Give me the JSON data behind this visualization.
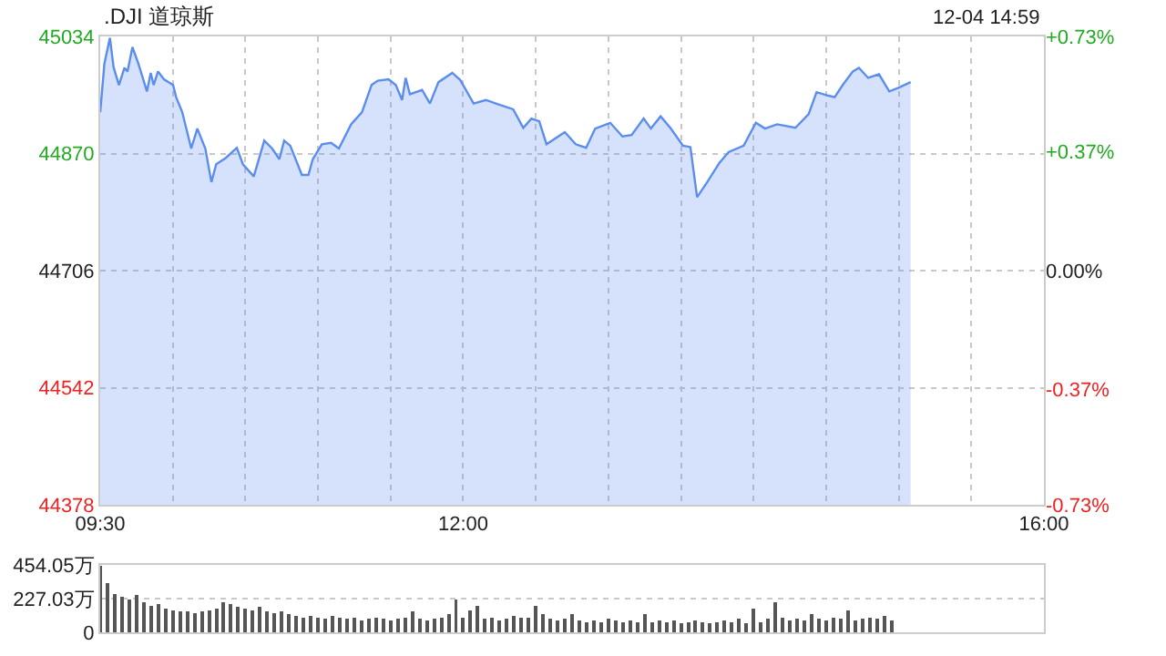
{
  "chart_data": [
    {
      "type": "area",
      "title": ".DJI 道琼斯",
      "annotations": [
        "12-04 14:59"
      ],
      "x": [
        9.5,
        9.529,
        9.567,
        9.592,
        9.629,
        9.667,
        9.688,
        9.722,
        9.763,
        9.822,
        9.848,
        9.868,
        9.898,
        9.939,
        10.002,
        10.023,
        10.065,
        10.127,
        10.169,
        10.224,
        10.266,
        10.299,
        10.366,
        10.441,
        10.483,
        10.558,
        10.63,
        10.684,
        10.734,
        10.767,
        10.809,
        10.889,
        10.934,
        10.964,
        11.027,
        11.09,
        11.144,
        11.228,
        11.303,
        11.369,
        11.411,
        11.486,
        11.536,
        11.579,
        11.604,
        11.633,
        11.717,
        11.771,
        11.83,
        11.925,
        11.98,
        12.072,
        12.156,
        12.239,
        12.344,
        12.414,
        12.47,
        12.524,
        12.574,
        12.7,
        12.775,
        12.847,
        12.909,
        13.013,
        13.097,
        13.16,
        13.243,
        13.293,
        13.36,
        13.43,
        13.514,
        13.565,
        13.611,
        13.681,
        13.765,
        13.828,
        13.932,
        14.016,
        14.079,
        14.162,
        14.288,
        14.379,
        14.434,
        14.517,
        14.559,
        14.614,
        14.684,
        14.726,
        14.789,
        14.864,
        14.935,
        14.998,
        15.082
      ],
      "series": [
        {
          "color": "#5b8def",
          "values": [
            44928,
            44996,
            45032,
            44991,
            44966,
            44990,
            44985,
            45019,
            44996,
            44957,
            44983,
            44966,
            44985,
            44974,
            44966,
            44949,
            44928,
            44877,
            44905,
            44877,
            44830,
            44855,
            44864,
            44878,
            44855,
            44838,
            44888,
            44877,
            44862,
            44888,
            44881,
            44840,
            44840,
            44862,
            44883,
            44885,
            44877,
            44911,
            44928,
            44966,
            44972,
            44974,
            44966,
            44945,
            44976,
            44953,
            44959,
            44940,
            44970,
            44983,
            44973,
            44940,
            44945,
            44939,
            44932,
            44906,
            44919,
            44915,
            44883,
            44900,
            44883,
            44878,
            44905,
            44913,
            44894,
            44896,
            44919,
            44905,
            44922,
            44905,
            44881,
            44879,
            44809,
            44830,
            44857,
            44872,
            44881,
            44913,
            44905,
            44911,
            44906,
            44925,
            44956,
            44951,
            44949,
            44966,
            44985,
            44990,
            44976,
            44981,
            44957,
            44962,
            44970
          ]
        }
      ],
      "xlim": [
        9.5,
        16
      ],
      "xticks": [
        {
          "value": 9.5,
          "label": "09:30"
        },
        {
          "value": 10,
          "label": null
        },
        {
          "value": 10.5,
          "label": null
        },
        {
          "value": 11,
          "label": null
        },
        {
          "value": 11.5,
          "label": null
        },
        {
          "value": 12,
          "label": "12:00"
        },
        {
          "value": 12.5,
          "label": null
        },
        {
          "value": 13,
          "label": null
        },
        {
          "value": 13.5,
          "label": null
        },
        {
          "value": 14,
          "label": null
        },
        {
          "value": 14.5,
          "label": null
        },
        {
          "value": 15,
          "label": null
        },
        {
          "value": 15.5,
          "label": null
        },
        {
          "value": 16,
          "label": "16:00"
        }
      ],
      "ylim": [
        44378,
        45034
      ],
      "yticks": [
        44378,
        44542,
        44706,
        44870,
        45034
      ],
      "y2lim": [
        -0.73,
        0.73
      ],
      "y2ticks": [
        {
          "value": -0.73,
          "label": "-0.73%"
        },
        {
          "value": -0.37,
          "label": "-0.37%"
        },
        {
          "value": 0,
          "label": "0.00%"
        },
        {
          "value": 0.37,
          "label": "+0.37%"
        },
        {
          "value": 0.73,
          "label": "+0.73%"
        }
      ],
      "grid": true,
      "legend": false
    },
    {
      "type": "bar",
      "x": [
        9.5,
        9.55,
        9.6,
        9.65,
        9.7,
        9.75,
        9.8,
        9.85,
        9.9,
        9.95,
        10,
        10.05,
        10.1,
        10.15,
        10.2,
        10.25,
        10.3,
        10.35,
        10.4,
        10.45,
        10.5,
        10.55,
        10.6,
        10.65,
        10.7,
        10.75,
        10.8,
        10.85,
        10.9,
        10.95,
        11,
        11.05,
        11.1,
        11.15,
        11.2,
        11.25,
        11.3,
        11.35,
        11.4,
        11.45,
        11.5,
        11.55,
        11.6,
        11.65,
        11.7,
        11.75,
        11.8,
        11.85,
        11.9,
        11.95,
        12,
        12.05,
        12.1,
        12.15,
        12.2,
        12.25,
        12.3,
        12.35,
        12.4,
        12.45,
        12.5,
        12.55,
        12.6,
        12.65,
        12.7,
        12.75,
        12.8,
        12.85,
        12.9,
        12.95,
        13,
        13.05,
        13.1,
        13.15,
        13.2,
        13.25,
        13.3,
        13.35,
        13.4,
        13.45,
        13.5,
        13.55,
        13.6,
        13.65,
        13.7,
        13.75,
        13.8,
        13.85,
        13.9,
        13.95,
        14,
        14.05,
        14.1,
        14.15,
        14.2,
        14.25,
        14.3,
        14.35,
        14.4,
        14.45,
        14.5,
        14.55,
        14.6,
        14.65,
        14.7,
        14.75,
        14.8,
        14.85,
        14.9,
        14.95
      ],
      "series": [
        {
          "color": "#555555",
          "values": [
            450,
            330,
            260,
            240,
            220,
            250,
            200,
            180,
            190,
            160,
            150,
            140,
            140,
            130,
            140,
            150,
            160,
            200,
            190,
            170,
            160,
            150,
            170,
            140,
            130,
            140,
            120,
            110,
            100,
            110,
            100,
            90,
            110,
            100,
            90,
            100,
            80,
            90,
            100,
            90,
            80,
            90,
            100,
            140,
            90,
            80,
            90,
            100,
            120,
            220,
            100,
            150,
            180,
            90,
            100,
            80,
            90,
            110,
            100,
            100,
            180,
            120,
            90,
            80,
            90,
            120,
            80,
            70,
            80,
            70,
            90,
            80,
            70,
            80,
            70,
            120,
            70,
            80,
            70,
            80,
            60,
            70,
            80,
            70,
            60,
            70,
            80,
            70,
            90,
            60,
            160,
            70,
            90,
            200,
            100,
            80,
            90,
            80,
            120,
            90,
            80,
            100,
            90,
            150,
            80,
            90,
            100,
            90,
            110,
            80
          ]
        }
      ],
      "xlim": [
        9.5,
        16
      ],
      "ylim": [
        0,
        454.05
      ],
      "yticks": [
        0,
        {
          "value": 227.03,
          "label": "227.03万"
        },
        {
          "value": 454.05,
          "label": "454.05万"
        }
      ],
      "grid": "y",
      "tick_labels": "y",
      "legend": false
    }
  ]
}
